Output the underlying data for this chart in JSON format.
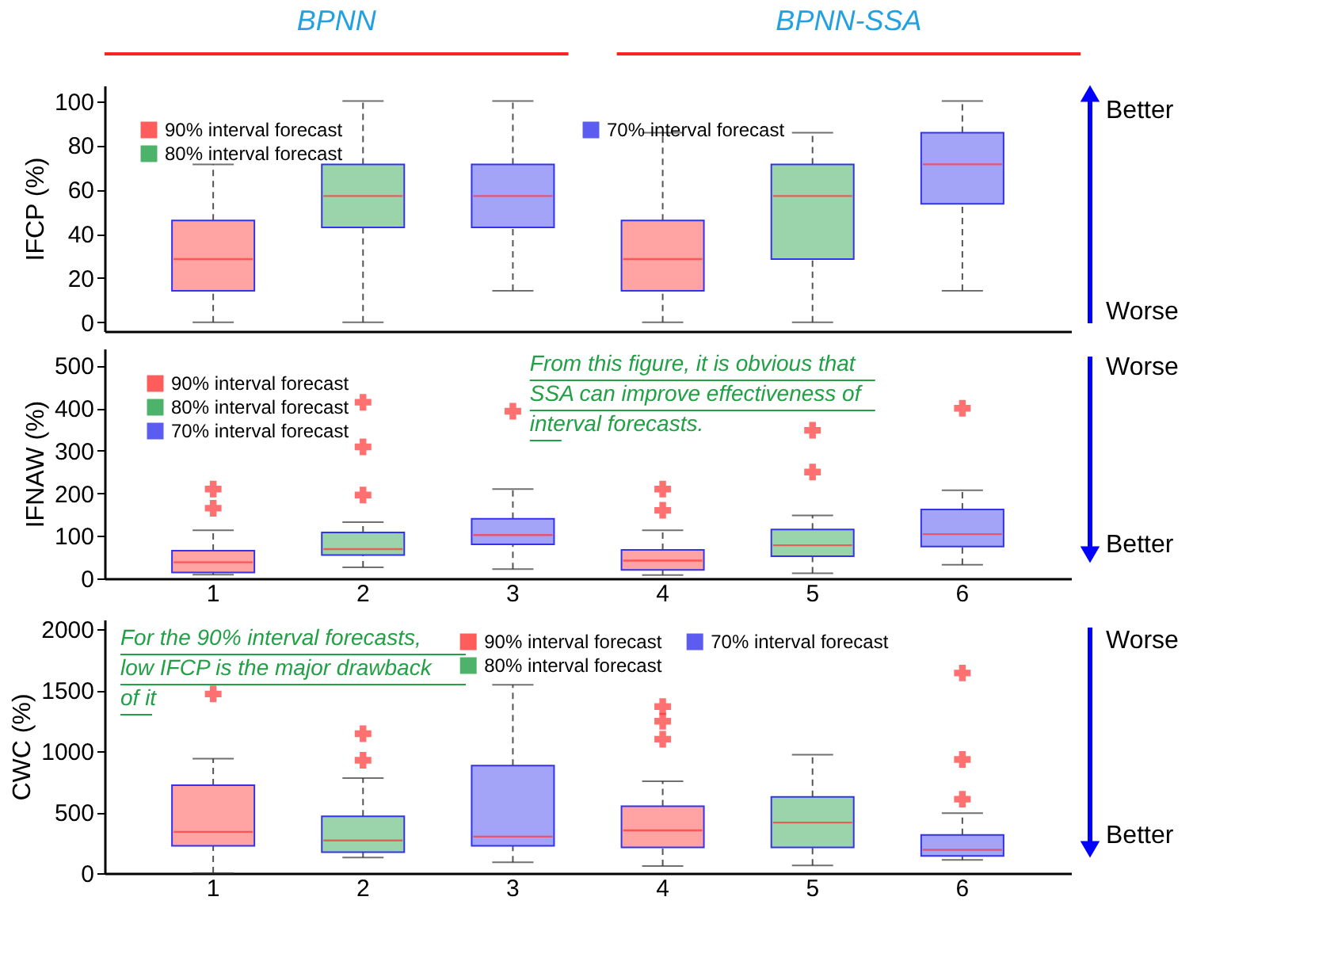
{
  "chart_data": [
    {
      "type": "box",
      "ylabel": "IFCP (%)",
      "categories": [
        "1",
        "2",
        "3",
        "4",
        "5",
        "6"
      ],
      "ylim": [
        -4,
        107
      ],
      "yticks": [
        0,
        20,
        40,
        60,
        80,
        100
      ],
      "tick_labels": "y",
      "legend": "top left",
      "grid": false,
      "annotations": [
        "BPNN",
        "BPNN-SSA",
        "Better",
        "Worse"
      ],
      "series": [
        {
          "name": "90% interval forecast",
          "color": "#ff3333",
          "boxes": [
            {
              "low": 0,
              "q1": 14.3,
              "median": 28.6,
              "q3": 46,
              "high": 71.4
            },
            null,
            null,
            {
              "low": 0,
              "q1": 14.3,
              "median": 28.6,
              "q3": 46,
              "high": 85.7
            },
            null,
            null
          ]
        },
        {
          "name": "80% interval forecast",
          "color": "#22a045",
          "boxes": [
            null,
            {
              "low": 0,
              "q1": 42.9,
              "median": 57.1,
              "q3": 71.4,
              "high": 100
            },
            null,
            null,
            {
              "low": 0,
              "q1": 28.6,
              "median": 57.1,
              "q3": 71.4,
              "high": 85.7
            },
            null
          ]
        },
        {
          "name": "70% interval forecast",
          "color": "#3333ee",
          "boxes": [
            null,
            null,
            {
              "low": 14.3,
              "q1": 42.9,
              "median": 57.1,
              "q3": 71.4,
              "high": 100
            },
            null,
            null,
            {
              "low": 14.3,
              "q1": 53.6,
              "median": 71.4,
              "q3": 85.7,
              "high": 100
            }
          ]
        }
      ]
    },
    {
      "type": "box",
      "ylabel": "IFNAW (%)",
      "categories": [
        "1",
        "2",
        "3",
        "4",
        "5",
        "6"
      ],
      "ylim": [
        0,
        540
      ],
      "yticks": [
        0,
        100,
        200,
        300,
        400,
        500
      ],
      "legend": "top left",
      "grid": false,
      "annotations": [
        "From this figure, it is obvious that\nSSA can improve effectiveness of\ninterval forecasts.",
        "Worse",
        "Better"
      ],
      "series": [
        {
          "name": "90% interval forecast",
          "color": "#ff3333",
          "boxes": [
            {
              "low": 9,
              "q1": 14,
              "median": 38,
              "q3": 65,
              "high": 113,
              "outliers": [
                165,
                210
              ]
            },
            null,
            null,
            {
              "low": 8,
              "q1": 20,
              "median": 42,
              "q3": 67,
              "high": 113,
              "outliers": [
                160,
                210
              ]
            },
            null,
            null
          ]
        },
        {
          "name": "80% interval forecast",
          "color": "#22a045",
          "boxes": [
            null,
            {
              "low": 26,
              "q1": 55,
              "median": 69,
              "q3": 108,
              "high": 132,
              "outliers": [
                196,
                309,
                414
              ]
            },
            null,
            null,
            {
              "low": 12,
              "q1": 52,
              "median": 78,
              "q3": 115,
              "high": 148,
              "outliers": [
                250,
                348
              ]
            },
            null
          ]
        },
        {
          "name": "70% interval forecast",
          "color": "#3333ee",
          "boxes": [
            null,
            null,
            {
              "low": 22,
              "q1": 80,
              "median": 102,
              "q3": 140,
              "high": 210,
              "outliers": [
                393
              ]
            },
            null,
            null,
            {
              "low": 32,
              "q1": 75,
              "median": 104,
              "q3": 162,
              "high": 207,
              "outliers": [
                400
              ]
            }
          ]
        }
      ]
    },
    {
      "type": "box",
      "ylabel": "CWC (%)",
      "categories": [
        "1",
        "2",
        "3",
        "4",
        "5",
        "6"
      ],
      "ylim": [
        0,
        2080
      ],
      "yticks": [
        0,
        500,
        1000,
        1500,
        2000
      ],
      "legend": "top",
      "grid": false,
      "annotations": [
        "For the 90% interval forecasts,\nlow IFCP is the major drawback\nof it",
        "Worse",
        "Better"
      ],
      "series": [
        {
          "name": "90% interval forecast",
          "color": "#ff3333",
          "boxes": [
            {
              "low": 0,
              "q1": 224,
              "median": 339,
              "q3": 722,
              "high": 939,
              "outliers": [
                1470
              ]
            },
            null,
            null,
            {
              "low": 58,
              "q1": 211,
              "median": 351,
              "q3": 550,
              "high": 754,
              "outliers": [
                1099,
                1246,
                1367
              ]
            },
            null,
            null
          ]
        },
        {
          "name": "80% interval forecast",
          "color": "#22a045",
          "boxes": [
            null,
            {
              "low": 128,
              "q1": 172,
              "median": 268,
              "q3": 466,
              "high": 780,
              "outliers": [
                926,
                1144
              ]
            },
            null,
            null,
            {
              "low": 64,
              "q1": 211,
              "median": 415,
              "q3": 626,
              "high": 971
            },
            null
          ]
        },
        {
          "name": "70% interval forecast",
          "color": "#3333ee",
          "boxes": [
            null,
            null,
            {
              "low": 90,
              "q1": 224,
              "median": 300,
              "q3": 882,
              "high": 1546
            },
            null,
            null,
            {
              "low": 109,
              "q1": 141,
              "median": 192,
              "q3": 313,
              "high": 492,
              "outliers": [
                607,
                933,
                1642
              ]
            }
          ]
        }
      ]
    }
  ]
}
